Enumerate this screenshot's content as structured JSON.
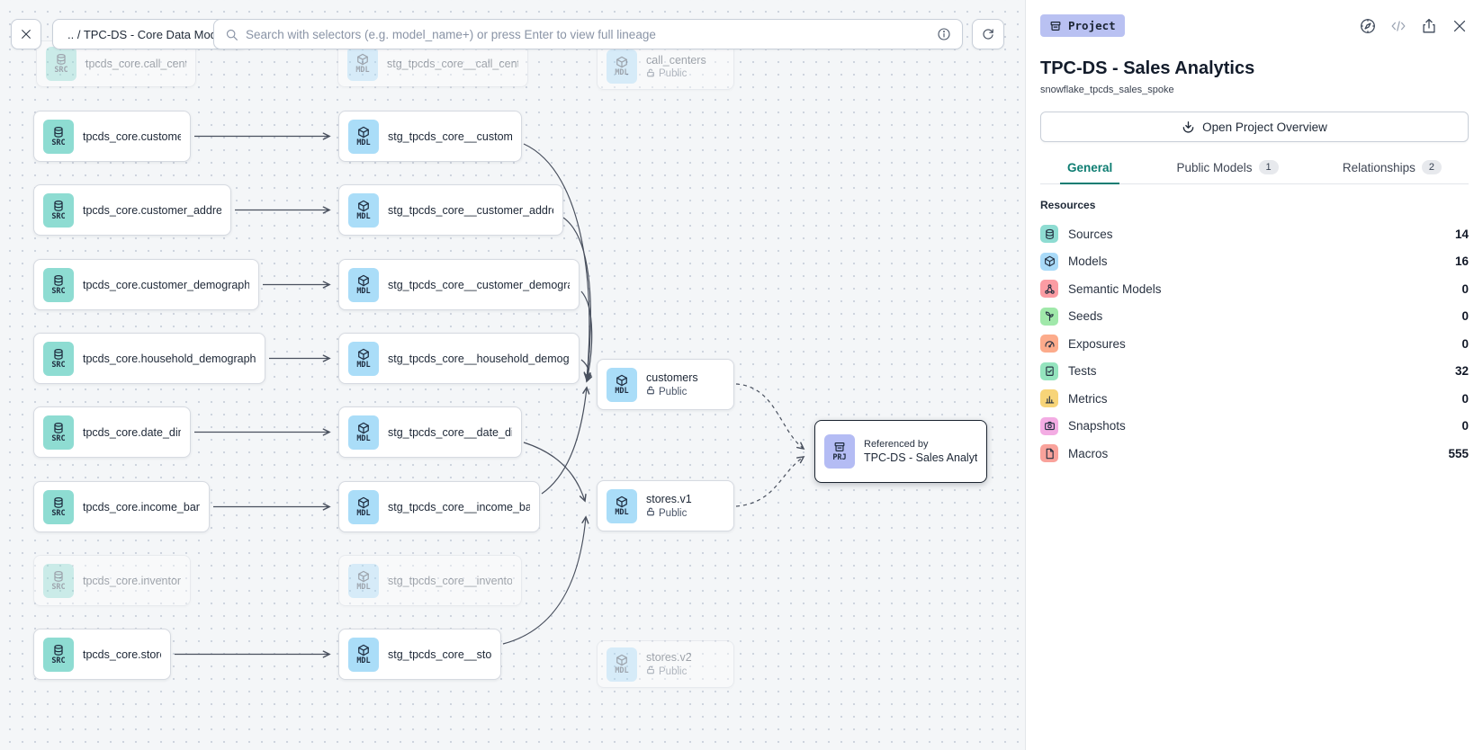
{
  "toolbar": {
    "breadcrumb": ".. / TPC-DS - Core Data Models",
    "search_placeholder": "Search with selectors (e.g. model_name+) or press Enter to view full lineage"
  },
  "panel": {
    "badge_label": "Project",
    "title": "TPC-DS - Sales Analytics",
    "subtitle": "snowflake_tpcds_sales_spoke",
    "overview_button_label": "Open Project Overview",
    "tabs": [
      {
        "label": "General",
        "active": true
      },
      {
        "label": "Public Models",
        "badge": "1",
        "active": false
      },
      {
        "label": "Relationships",
        "badge": "2",
        "active": false
      }
    ],
    "resources_header": "Resources",
    "resources": [
      {
        "label": "Sources",
        "count": "14",
        "icon": "database-icon",
        "color": "#8edcd2"
      },
      {
        "label": "Models",
        "count": "16",
        "icon": "cube-icon",
        "color": "#a9daf8"
      },
      {
        "label": "Semantic Models",
        "count": "0",
        "icon": "semantic-graph-icon",
        "color": "#fb9ca3"
      },
      {
        "label": "Seeds",
        "count": "0",
        "icon": "seedling-icon",
        "color": "#a0e8aa"
      },
      {
        "label": "Exposures",
        "count": "0",
        "icon": "gauge-icon",
        "color": "#fcab8b"
      },
      {
        "label": "Tests",
        "count": "32",
        "icon": "clipboard-check-icon",
        "color": "#94e4be"
      },
      {
        "label": "Metrics",
        "count": "0",
        "icon": "bar-chart-icon",
        "color": "#f7d478"
      },
      {
        "label": "Snapshots",
        "count": "0",
        "icon": "camera-icon",
        "color": "#f3ace3"
      },
      {
        "label": "Macros",
        "count": "555",
        "icon": "file-icon",
        "color": "#f9a29b"
      }
    ]
  },
  "graph": {
    "public_label": "Public",
    "nodes": [
      {
        "id": "src_call_center",
        "type": "SRC",
        "label": "tpcds_core.call_center",
        "faded": true
      },
      {
        "id": "mdl_call_center",
        "type": "MDL",
        "label": "stg_tpcds_core__call_center",
        "faded": true
      },
      {
        "id": "pub_call_centers",
        "type": "MDL",
        "label": "call_centers",
        "sub": "Public",
        "faded": true
      },
      {
        "id": "src_customer",
        "type": "SRC",
        "label": "tpcds_core.customer"
      },
      {
        "id": "mdl_customer",
        "type": "MDL",
        "label": "stg_tpcds_core__customer"
      },
      {
        "id": "src_customer_address",
        "type": "SRC",
        "label": "tpcds_core.customer_address"
      },
      {
        "id": "mdl_customer_address",
        "type": "MDL",
        "label": "stg_tpcds_core__customer_address"
      },
      {
        "id": "src_customer_demographics",
        "type": "SRC",
        "label": "tpcds_core.customer_demographics"
      },
      {
        "id": "mdl_customer_demographics",
        "type": "MDL",
        "label": "stg_tpcds_core__customer_demogra…"
      },
      {
        "id": "src_household_demographics",
        "type": "SRC",
        "label": "tpcds_core.household_demographics"
      },
      {
        "id": "mdl_household_demographics",
        "type": "MDL",
        "label": "stg_tpcds_core__household_demogr…"
      },
      {
        "id": "src_date_dim",
        "type": "SRC",
        "label": "tpcds_core.date_dim"
      },
      {
        "id": "mdl_date_dim",
        "type": "MDL",
        "label": "stg_tpcds_core__date_dim"
      },
      {
        "id": "src_income_band",
        "type": "SRC",
        "label": "tpcds_core.income_band"
      },
      {
        "id": "mdl_income_band",
        "type": "MDL",
        "label": "stg_tpcds_core__income_band"
      },
      {
        "id": "src_inventory",
        "type": "SRC",
        "label": "tpcds_core.inventory",
        "faded": true
      },
      {
        "id": "mdl_inventory",
        "type": "MDL",
        "label": "stg_tpcds_core__inventory",
        "faded": true
      },
      {
        "id": "src_store",
        "type": "SRC",
        "label": "tpcds_core.store"
      },
      {
        "id": "mdl_store",
        "type": "MDL",
        "label": "stg_tpcds_core__store"
      },
      {
        "id": "pub_customers",
        "type": "MDL",
        "label": "customers",
        "sub": "Public"
      },
      {
        "id": "pub_stores_v1",
        "type": "MDL",
        "label": "stores.v1",
        "sub": "Public"
      },
      {
        "id": "pub_stores_v2",
        "type": "MDL",
        "label": "stores.v2",
        "sub": "Public",
        "faded": true
      },
      {
        "id": "prj_sales_analytics",
        "type": "PRJ",
        "label": "TPC-DS - Sales Analytics",
        "meta": "Referenced by",
        "selected": true
      }
    ]
  }
}
